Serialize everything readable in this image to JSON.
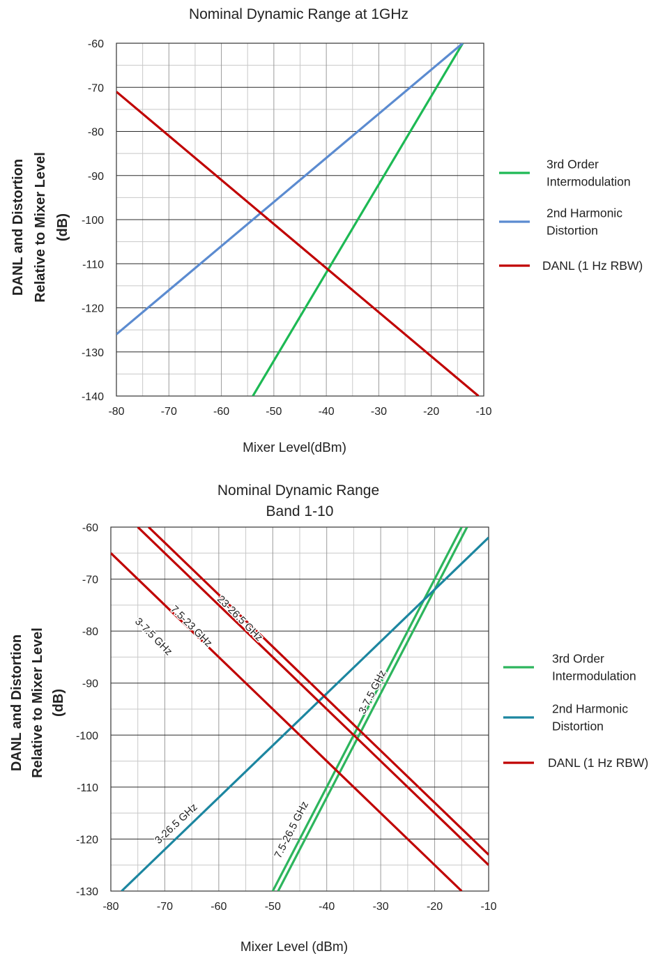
{
  "chart_data": [
    {
      "type": "line",
      "title": "Nominal Dynamic Range at 1GHz",
      "xlabel": "Mixer Level(dBm)",
      "ylabel_lines": [
        "DANL and Distortion",
        "Relative to Mixer Level",
        "(dB)"
      ],
      "xlim": [
        -80,
        -10
      ],
      "ylim": [
        -140,
        -60
      ],
      "xticks": [
        -80,
        -70,
        -60,
        -50,
        -40,
        -30,
        -20,
        -10
      ],
      "yticks": [
        -60,
        -70,
        -80,
        -90,
        -100,
        -110,
        -120,
        -130,
        -140
      ],
      "xtick_labels": [
        "-80",
        "-70",
        "-60",
        "-50",
        "-40",
        "-30",
        "-20",
        "-10"
      ],
      "ytick_labels": [
        "-60",
        "-70",
        "-80",
        "-90",
        "-100",
        "-110",
        "-120",
        "-130",
        "-140"
      ],
      "grid": true,
      "legend_position": "right",
      "series": [
        {
          "name": "3rd Order Intermodulation",
          "name_lines": [
            "3rd Order",
            "Intermodulation"
          ],
          "color": "#1db954",
          "x": [
            -54,
            -14
          ],
          "y": [
            -140,
            -60
          ]
        },
        {
          "name": "2nd Harmonic Distortion",
          "name_lines": [
            "2nd Harmonic",
            "Distortion"
          ],
          "color": "#5b8bd0",
          "x": [
            -80,
            -14
          ],
          "y": [
            -126,
            -60
          ]
        },
        {
          "name": "DANL (1 Hz RBW)",
          "name_lines": [
            "DANL (1 Hz RBW)"
          ],
          "color": "#c00000",
          "x": [
            -80,
            -11
          ],
          "y": [
            -71,
            -140
          ]
        }
      ],
      "annotations": []
    },
    {
      "type": "line",
      "title": "Nominal Dynamic Range",
      "subtitle": "Band 1-10",
      "xlabel": "Mixer Level (dBm)",
      "ylabel_lines": [
        "DANL and Distortion",
        "Relative to Mixer Level",
        "(dB)"
      ],
      "xlim": [
        -80,
        -10
      ],
      "ylim": [
        -130,
        -60
      ],
      "xticks": [
        -80,
        -70,
        -60,
        -50,
        -40,
        -30,
        -20,
        -10
      ],
      "yticks": [
        -60,
        -70,
        -80,
        -90,
        -100,
        -110,
        -120,
        -130
      ],
      "xtick_labels": [
        "-80",
        "-70",
        "-60",
        "-50",
        "-40",
        "-30",
        "-20",
        "-10"
      ],
      "ytick_labels": [
        "-60",
        "-70",
        "-80",
        "-90",
        "-100",
        "-110",
        "-120",
        "-130"
      ],
      "grid": true,
      "legend_position": "right",
      "series": [
        {
          "name": "3rd Order Intermodulation",
          "name_lines": [
            "3rd Order",
            "Intermodulation"
          ],
          "color": "#2db55d",
          "x": [
            -50,
            -15
          ],
          "y": [
            -130,
            -60
          ]
        },
        {
          "color": "#2db55d",
          "x": [
            -49,
            -14
          ],
          "y": [
            -130,
            -60
          ]
        },
        {
          "name": "2nd Harmonic Distortion",
          "name_lines": [
            "2nd Harmonic",
            "Distortion"
          ],
          "color": "#1c86a0",
          "x": [
            -78,
            -10
          ],
          "y": [
            -130,
            -62
          ]
        },
        {
          "name": "DANL (1 Hz RBW)",
          "name_lines": [
            "DANL (1 Hz RBW)"
          ],
          "color": "#c00000",
          "x": [
            -80,
            -15
          ],
          "y": [
            -65,
            -130
          ]
        },
        {
          "color": "#c00000",
          "x": [
            -75,
            -10
          ],
          "y": [
            -60,
            -125
          ]
        },
        {
          "color": "#c00000",
          "x": [
            -73,
            -10
          ],
          "y": [
            -60,
            -123
          ]
        }
      ],
      "annotations": [
        {
          "text": "3-7.5 GHz",
          "x": -72.5,
          "y": -81.5,
          "angle": 45
        },
        {
          "text": "7.5-23 GHz",
          "x": -65.5,
          "y": -79.5,
          "angle": 45
        },
        {
          "text": "23-26.5 GHz",
          "x": -56.5,
          "y": -78,
          "angle": 45
        },
        {
          "text": "3-7.5 GHz",
          "x": -31,
          "y": -92,
          "angle": -63
        },
        {
          "text": "3-26.5 GHz",
          "x": -67.5,
          "y": -117.5,
          "angle": -43
        },
        {
          "text": "7.5-26.5 GHz",
          "x": -46,
          "y": -118.5,
          "angle": -63
        }
      ]
    }
  ]
}
